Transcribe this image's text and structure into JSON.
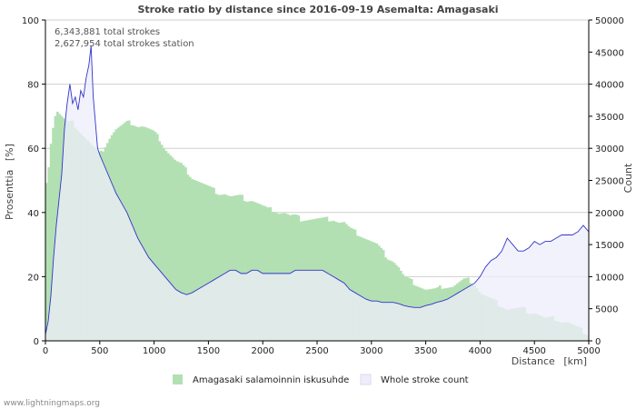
{
  "footer": "www.lightningmaps.org",
  "chart_data": {
    "type": "bar",
    "title": "Stroke ratio by distance since 2016-09-19 Asemalta: Amagasaki",
    "xlabel": "Distance",
    "xunit": "[km]",
    "ylabel_left": "Prosenttia",
    "ylabel_left_unit": "[%]",
    "ylabel_right": "Count",
    "xlim": [
      0,
      5000
    ],
    "ylim_left": [
      0,
      100
    ],
    "ylim_right": [
      0,
      50000
    ],
    "x_ticks": [
      0,
      500,
      1000,
      1500,
      2000,
      2500,
      3000,
      3500,
      4000,
      4500,
      5000
    ],
    "y_left_ticks": [
      0,
      20,
      40,
      60,
      80,
      100
    ],
    "y_right_ticks": [
      0,
      5000,
      10000,
      15000,
      20000,
      25000,
      30000,
      35000,
      40000,
      45000,
      50000
    ],
    "annotations": [
      "6,343,881 total strokes",
      "2,627,954 total strokes station"
    ],
    "colors": {
      "ratio_fill": "#b2e0b2",
      "ratio_stroke": "#99d699",
      "count_fill": "#eeeefb",
      "count_line": "#3333cc",
      "grid": "#cfcfcf"
    },
    "series": [
      {
        "name": "Amagasaki salamoinnin iskusuhde",
        "axis": "left",
        "kind": "bar",
        "points": [
          [
            0,
            48
          ],
          [
            25,
            53
          ],
          [
            50,
            62
          ],
          [
            75,
            68
          ],
          [
            100,
            72
          ],
          [
            150,
            70
          ],
          [
            200,
            68
          ],
          [
            250,
            68
          ],
          [
            300,
            66
          ],
          [
            350,
            64
          ],
          [
            400,
            62
          ],
          [
            450,
            60
          ],
          [
            500,
            58
          ],
          [
            550,
            61
          ],
          [
            600,
            64
          ],
          [
            650,
            66
          ],
          [
            700,
            67
          ],
          [
            750,
            68
          ],
          [
            800,
            68
          ],
          [
            850,
            67
          ],
          [
            900,
            67
          ],
          [
            950,
            66
          ],
          [
            1000,
            65
          ],
          [
            1050,
            63
          ],
          [
            1100,
            60
          ],
          [
            1150,
            58
          ],
          [
            1200,
            56
          ],
          [
            1250,
            55
          ],
          [
            1300,
            53
          ],
          [
            1350,
            51
          ],
          [
            1400,
            50
          ],
          [
            1450,
            49
          ],
          [
            1500,
            48
          ],
          [
            1550,
            47
          ],
          [
            1600,
            46
          ],
          [
            1650,
            46
          ],
          [
            1700,
            45
          ],
          [
            1750,
            45
          ],
          [
            1800,
            45
          ],
          [
            1850,
            44
          ],
          [
            1900,
            44
          ],
          [
            1950,
            43
          ],
          [
            2000,
            42
          ],
          [
            2050,
            41
          ],
          [
            2100,
            41
          ],
          [
            2150,
            40
          ],
          [
            2200,
            40
          ],
          [
            2250,
            39
          ],
          [
            2300,
            39
          ],
          [
            2350,
            38
          ],
          [
            2400,
            38
          ],
          [
            2450,
            38
          ],
          [
            2500,
            38
          ],
          [
            2550,
            38
          ],
          [
            2600,
            38
          ],
          [
            2650,
            38
          ],
          [
            2700,
            37
          ],
          [
            2750,
            37
          ],
          [
            2800,
            35
          ],
          [
            2850,
            34
          ],
          [
            2900,
            33
          ],
          [
            2950,
            32
          ],
          [
            3000,
            31
          ],
          [
            3050,
            30
          ],
          [
            3100,
            28
          ],
          [
            3150,
            26
          ],
          [
            3200,
            25
          ],
          [
            3250,
            23
          ],
          [
            3300,
            20
          ],
          [
            3350,
            19
          ],
          [
            3400,
            18
          ],
          [
            3450,
            17
          ],
          [
            3500,
            16
          ],
          [
            3550,
            16
          ],
          [
            3600,
            16
          ],
          [
            3650,
            17
          ],
          [
            3700,
            17
          ],
          [
            3750,
            17
          ],
          [
            3800,
            18
          ],
          [
            3850,
            19
          ],
          [
            3900,
            19
          ],
          [
            3950,
            18
          ],
          [
            4000,
            15
          ],
          [
            4050,
            14
          ],
          [
            4100,
            13
          ],
          [
            4150,
            12
          ],
          [
            4200,
            11
          ],
          [
            4250,
            10
          ],
          [
            4300,
            10
          ],
          [
            4350,
            10
          ],
          [
            4400,
            10
          ],
          [
            4450,
            9
          ],
          [
            4500,
            9
          ],
          [
            4550,
            8
          ],
          [
            4600,
            7
          ],
          [
            4650,
            7
          ],
          [
            4700,
            7
          ],
          [
            4750,
            6
          ],
          [
            4800,
            6
          ],
          [
            4850,
            5
          ],
          [
            4900,
            4
          ],
          [
            4950,
            3
          ],
          [
            5000,
            2
          ]
        ]
      },
      {
        "name": "Whole stroke count",
        "axis": "right",
        "kind": "area",
        "points": [
          [
            0,
            1000
          ],
          [
            25,
            3000
          ],
          [
            50,
            7000
          ],
          [
            75,
            13000
          ],
          [
            100,
            18000
          ],
          [
            125,
            22000
          ],
          [
            150,
            26000
          ],
          [
            175,
            33000
          ],
          [
            200,
            37000
          ],
          [
            225,
            40000
          ],
          [
            250,
            37000
          ],
          [
            275,
            38000
          ],
          [
            300,
            36000
          ],
          [
            325,
            39000
          ],
          [
            350,
            38000
          ],
          [
            375,
            41000
          ],
          [
            400,
            43000
          ],
          [
            420,
            46000
          ],
          [
            440,
            38000
          ],
          [
            460,
            34000
          ],
          [
            480,
            30000
          ],
          [
            500,
            29000
          ],
          [
            550,
            27000
          ],
          [
            600,
            25000
          ],
          [
            650,
            23000
          ],
          [
            700,
            21500
          ],
          [
            750,
            20000
          ],
          [
            800,
            18000
          ],
          [
            850,
            16000
          ],
          [
            900,
            14500
          ],
          [
            950,
            13000
          ],
          [
            1000,
            12000
          ],
          [
            1050,
            11000
          ],
          [
            1100,
            10000
          ],
          [
            1150,
            9000
          ],
          [
            1200,
            8000
          ],
          [
            1250,
            7500
          ],
          [
            1300,
            7200
          ],
          [
            1350,
            7500
          ],
          [
            1400,
            8000
          ],
          [
            1450,
            8500
          ],
          [
            1500,
            9000
          ],
          [
            1550,
            9500
          ],
          [
            1600,
            10000
          ],
          [
            1650,
            10500
          ],
          [
            1700,
            11000
          ],
          [
            1750,
            11000
          ],
          [
            1800,
            10500
          ],
          [
            1850,
            10500
          ],
          [
            1900,
            11000
          ],
          [
            1950,
            11000
          ],
          [
            2000,
            10500
          ],
          [
            2050,
            10500
          ],
          [
            2100,
            10500
          ],
          [
            2150,
            10500
          ],
          [
            2200,
            10500
          ],
          [
            2250,
            10500
          ],
          [
            2300,
            11000
          ],
          [
            2350,
            11000
          ],
          [
            2400,
            11000
          ],
          [
            2450,
            11000
          ],
          [
            2500,
            11000
          ],
          [
            2550,
            11000
          ],
          [
            2600,
            10500
          ],
          [
            2650,
            10000
          ],
          [
            2700,
            9500
          ],
          [
            2750,
            9000
          ],
          [
            2800,
            8000
          ],
          [
            2850,
            7500
          ],
          [
            2900,
            7000
          ],
          [
            2950,
            6500
          ],
          [
            3000,
            6200
          ],
          [
            3050,
            6200
          ],
          [
            3100,
            6000
          ],
          [
            3150,
            6000
          ],
          [
            3200,
            6000
          ],
          [
            3250,
            5800
          ],
          [
            3300,
            5500
          ],
          [
            3350,
            5300
          ],
          [
            3400,
            5200
          ],
          [
            3450,
            5200
          ],
          [
            3500,
            5500
          ],
          [
            3550,
            5700
          ],
          [
            3600,
            6000
          ],
          [
            3650,
            6200
          ],
          [
            3700,
            6500
          ],
          [
            3750,
            7000
          ],
          [
            3800,
            7500
          ],
          [
            3850,
            8000
          ],
          [
            3900,
            8500
          ],
          [
            3950,
            9000
          ],
          [
            4000,
            10000
          ],
          [
            4050,
            11500
          ],
          [
            4100,
            12500
          ],
          [
            4150,
            13000
          ],
          [
            4200,
            14000
          ],
          [
            4250,
            16000
          ],
          [
            4300,
            15000
          ],
          [
            4350,
            14000
          ],
          [
            4400,
            14000
          ],
          [
            4450,
            14500
          ],
          [
            4500,
            15500
          ],
          [
            4550,
            15000
          ],
          [
            4600,
            15500
          ],
          [
            4650,
            15500
          ],
          [
            4700,
            16000
          ],
          [
            4750,
            16500
          ],
          [
            4800,
            16500
          ],
          [
            4850,
            16500
          ],
          [
            4900,
            17000
          ],
          [
            4950,
            18000
          ],
          [
            5000,
            17000
          ]
        ]
      }
    ]
  }
}
